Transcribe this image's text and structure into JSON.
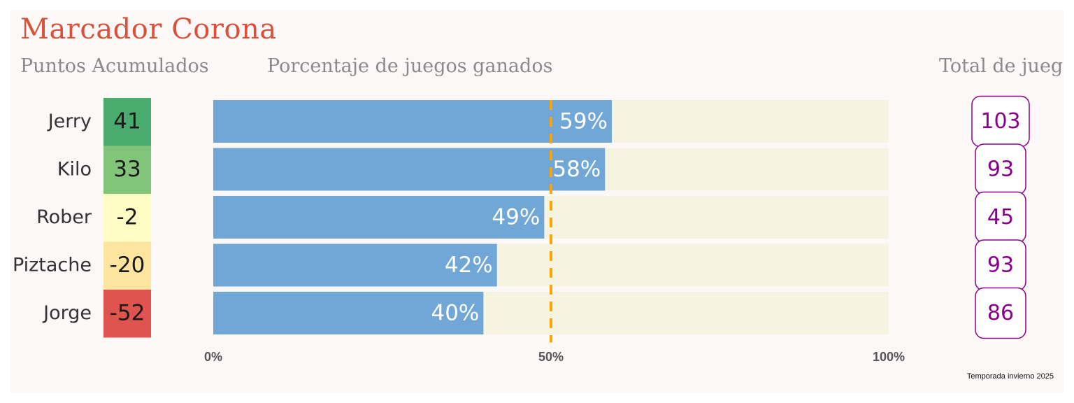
{
  "title": "Marcador Corona",
  "column_titles": {
    "points": "Puntos Acumulados",
    "percentage": "Porcentaje de juegos ganados",
    "total": "Total de juegos"
  },
  "footer": "Temporada invierno 2025",
  "colors": {
    "title": "#d9513a",
    "bar": "#71a7d6",
    "bar_track": "#f6f4e1",
    "reference_line": "#ffa500",
    "total_text": "#8b008b",
    "points_scale": [
      "#4aab6e",
      "#82c57a",
      "#fcfcc4",
      "#fde59f",
      "#e0544f"
    ]
  },
  "chart_data": {
    "type": "bar",
    "orientation": "horizontal",
    "categories": [
      "Jerry",
      "Kilo",
      "Rober",
      "Piztache",
      "Jorge"
    ],
    "points": [
      41,
      33,
      -2,
      -20,
      -52
    ],
    "values": [
      59,
      58,
      49,
      42,
      40
    ],
    "value_labels": [
      "59%",
      "58%",
      "49%",
      "42%",
      "40%"
    ],
    "totals": [
      103,
      93,
      45,
      93,
      86
    ],
    "xlim": [
      0,
      100
    ],
    "x_ticks": [
      "0%",
      "50%",
      "100%"
    ],
    "reference_line": 50
  }
}
